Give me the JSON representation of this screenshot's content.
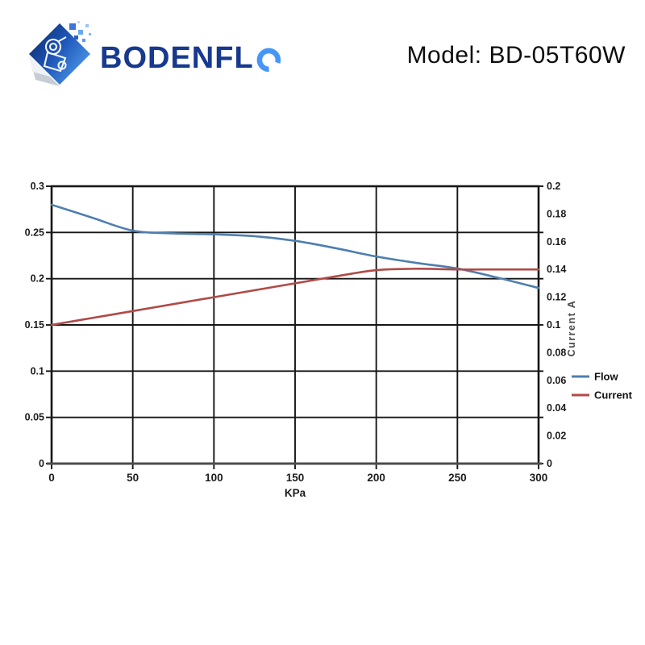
{
  "header": {
    "brand_prefix": "BODENFL",
    "brand_suffix_letter": "O",
    "brand_color": "#17398f",
    "brand_accent_color": "#4596f7",
    "model_label": "Model: BD-05T60W"
  },
  "chart_data": {
    "type": "line",
    "title": "",
    "xlabel": "KPa",
    "x_range": [
      0,
      300
    ],
    "x_ticks": [
      "0",
      "50",
      "100",
      "150",
      "200",
      "250",
      "300"
    ],
    "left_axis": {
      "range": [
        0,
        0.3
      ],
      "ticks": [
        "0.3",
        "0.25",
        "0.2",
        "0.15",
        "0.1",
        "0.05",
        "0"
      ]
    },
    "right_axis": {
      "label": "Current A",
      "range": [
        0,
        0.2
      ],
      "ticks": [
        "0.2",
        "0.18",
        "0.16",
        "0.14",
        "0.12",
        "0.1",
        "0.08",
        "0.06",
        "0.04",
        "0.02",
        "0"
      ]
    },
    "grid": true,
    "legend_position": "right",
    "x": [
      0,
      25,
      50,
      75,
      100,
      125,
      150,
      175,
      200,
      225,
      250,
      275,
      300
    ],
    "series": [
      {
        "name": "Flow",
        "axis": "left",
        "color": "#4f7fae",
        "values": [
          0.28,
          0.266,
          0.252,
          0.249,
          0.248,
          0.246,
          0.241,
          0.233,
          0.224,
          0.217,
          0.211,
          0.201,
          0.19
        ]
      },
      {
        "name": "Current",
        "axis": "right",
        "color": "#b04a47",
        "values": [
          0.1,
          0.105,
          0.11,
          0.115,
          0.12,
          0.125,
          0.13,
          0.135,
          0.1395,
          0.1405,
          0.14,
          0.14,
          0.14
        ]
      }
    ]
  }
}
